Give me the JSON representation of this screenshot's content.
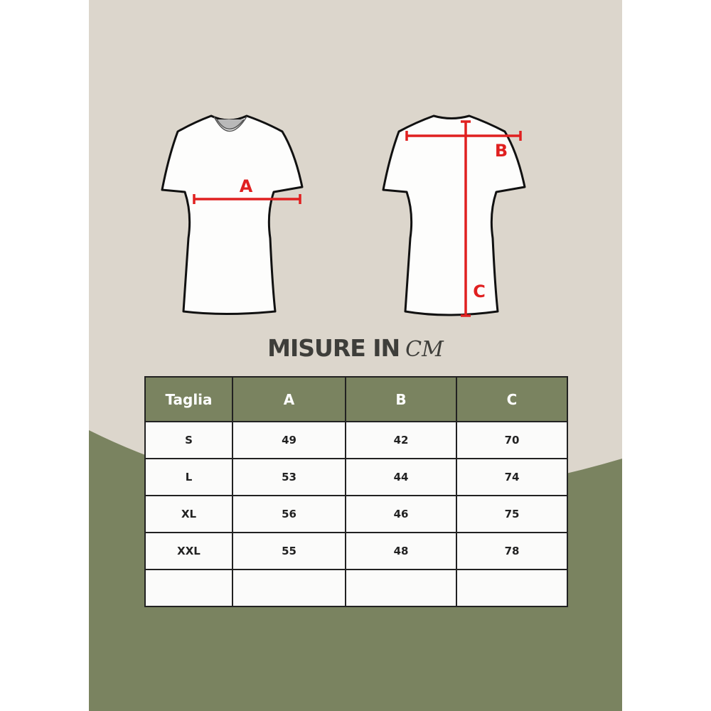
{
  "title": {
    "main": "MISURE IN",
    "unit": "CM"
  },
  "diagram_labels": {
    "front_chest": "A",
    "back_shoulder": "B",
    "back_length": "C"
  },
  "colors": {
    "background": "#dcd6cc",
    "accent_green": "#7a8360",
    "measure_red": "#e02020"
  },
  "table": {
    "headers": [
      "Taglia",
      "A",
      "B",
      "C"
    ],
    "rows": [
      [
        "S",
        "49",
        "42",
        "70"
      ],
      [
        "L",
        "53",
        "44",
        "74"
      ],
      [
        "XL",
        "56",
        "46",
        "75"
      ],
      [
        "XXL",
        "55",
        "48",
        "78"
      ],
      [
        "",
        "",
        "",
        ""
      ]
    ]
  }
}
